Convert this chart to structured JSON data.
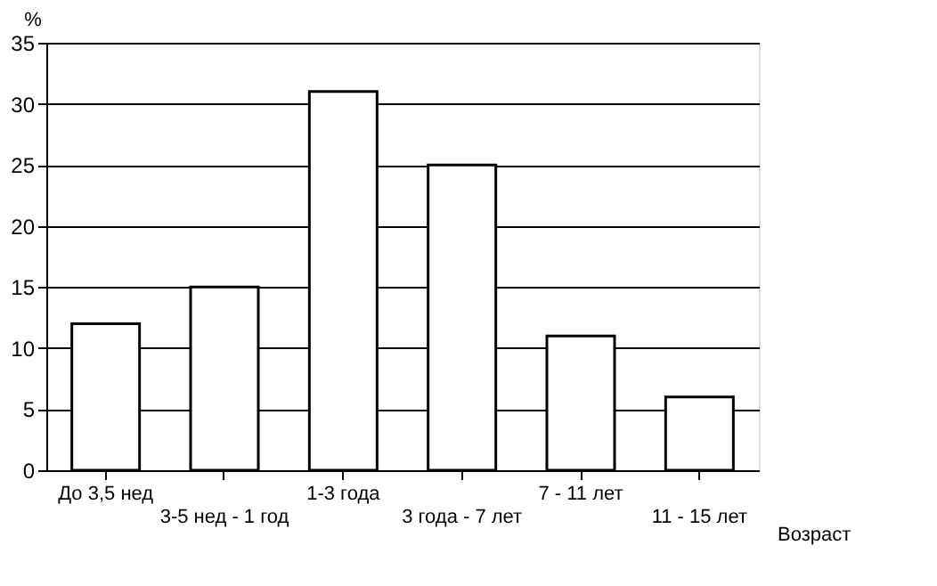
{
  "chart_data": {
    "type": "bar",
    "categories": [
      "До 3,5 нед",
      "3-5 нед - 1 год",
      "1-3 года",
      "3 года - 7 лет",
      "7 - 11 лет",
      "11 - 15 лет"
    ],
    "values": [
      12,
      15,
      31,
      25,
      11,
      6
    ],
    "color": "#ffffff",
    "ylabel": "%",
    "xlabel": "Возраст",
    "ylim": [
      0,
      35
    ],
    "yticks": [
      0,
      5,
      10,
      15,
      20,
      25,
      30,
      35
    ],
    "grid": "y"
  }
}
